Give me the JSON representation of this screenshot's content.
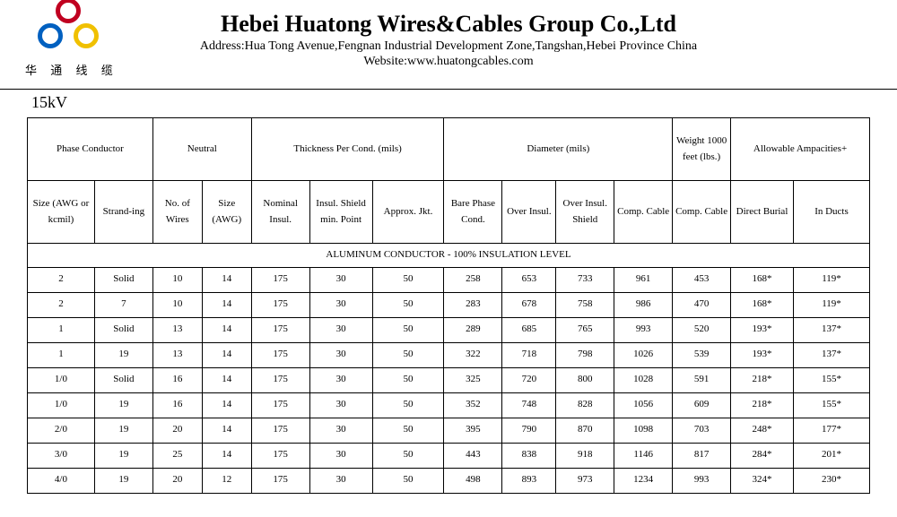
{
  "header": {
    "company_name": "Hebei Huatong Wires&Cables Group Co.,Ltd",
    "address_label": "Address:",
    "address": "Hua Tong Avenue,Fengnan Industrial Development Zone,Tangshan,Hebei Province China",
    "website_label": "Website:",
    "website": "www.huatongcables.com",
    "logo_cn": "华 通 线 缆"
  },
  "voltage": "15kV",
  "table": {
    "groups": {
      "phase": "Phase Conductor",
      "neutral": "Neutral",
      "thickness": "Thickness Per Cond. (mils)",
      "diameter": "Diameter (mils)",
      "weight": "Weight 1000 feet (lbs.)",
      "ampacity": "Allowable Ampacities+"
    },
    "columns": [
      "Size (AWG or kcmil)",
      "Strand-ing",
      "No. of Wires",
      "Size (AWG)",
      "Nominal Insul.",
      "Insul. Shield min. Point",
      "Approx. Jkt.",
      "Bare Phase Cond.",
      "Over Insul.",
      "Over Insul. Shield",
      "Comp. Cable",
      "Comp. Cable",
      "Direct Burial",
      "In Ducts"
    ],
    "section_title": "ALUMINUM CONDUCTOR - 100% INSULATION LEVEL",
    "rows": [
      [
        "2",
        "Solid",
        "10",
        "14",
        "175",
        "30",
        "50",
        "258",
        "653",
        "733",
        "961",
        "453",
        "168*",
        "119*"
      ],
      [
        "2",
        "7",
        "10",
        "14",
        "175",
        "30",
        "50",
        "283",
        "678",
        "758",
        "986",
        "470",
        "168*",
        "119*"
      ],
      [
        "1",
        "Solid",
        "13",
        "14",
        "175",
        "30",
        "50",
        "289",
        "685",
        "765",
        "993",
        "520",
        "193*",
        "137*"
      ],
      [
        "1",
        "19",
        "13",
        "14",
        "175",
        "30",
        "50",
        "322",
        "718",
        "798",
        "1026",
        "539",
        "193*",
        "137*"
      ],
      [
        "1/0",
        "Solid",
        "16",
        "14",
        "175",
        "30",
        "50",
        "325",
        "720",
        "800",
        "1028",
        "591",
        "218*",
        "155*"
      ],
      [
        "1/0",
        "19",
        "16",
        "14",
        "175",
        "30",
        "50",
        "352",
        "748",
        "828",
        "1056",
        "609",
        "218*",
        "155*"
      ],
      [
        "2/0",
        "19",
        "20",
        "14",
        "175",
        "30",
        "50",
        "395",
        "790",
        "870",
        "1098",
        "703",
        "248*",
        "177*"
      ],
      [
        "3/0",
        "19",
        "25",
        "14",
        "175",
        "30",
        "50",
        "443",
        "838",
        "918",
        "1146",
        "817",
        "284*",
        "201*"
      ],
      [
        "4/0",
        "19",
        "20",
        "12",
        "175",
        "30",
        "50",
        "498",
        "893",
        "973",
        "1234",
        "993",
        "324*",
        "230*"
      ]
    ]
  },
  "style": {
    "colors": {
      "text": "#000000",
      "bg": "#ffffff",
      "border": "#000000",
      "logo_red": "#c00020",
      "logo_blue": "#0060c0",
      "logo_yellow": "#f0c000"
    },
    "col_widths_pct": [
      7.5,
      6.5,
      5.5,
      5.5,
      6.5,
      7,
      8,
      6.5,
      6,
      6.5,
      6.5,
      6.5,
      7,
      8.5
    ]
  }
}
